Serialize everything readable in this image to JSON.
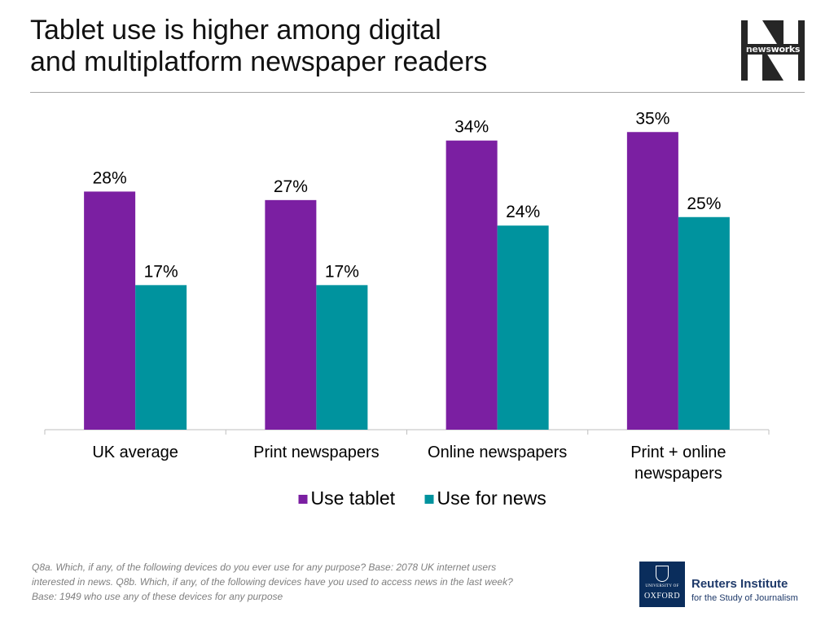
{
  "header": {
    "title_lines": [
      "Tablet use is higher among digital",
      "and multiplatform newspaper readers"
    ],
    "logo_prefix": "news",
    "logo_suffix": "works",
    "logo_letter": "N"
  },
  "chart_data": {
    "type": "bar",
    "categories": [
      [
        "UK average"
      ],
      [
        "Print newspapers"
      ],
      [
        "Online newspapers"
      ],
      [
        "Print + online",
        "newspapers"
      ]
    ],
    "series": [
      {
        "name": "Use tablet",
        "values": [
          28,
          27,
          34,
          35
        ],
        "labels": [
          "28%",
          "27%",
          "34%",
          "35%"
        ],
        "color": "#7b1fa2"
      },
      {
        "name": "Use for news",
        "values": [
          17,
          17,
          24,
          25
        ],
        "labels": [
          "17%",
          "17%",
          "24%",
          "25%"
        ],
        "color": "#00939e"
      }
    ],
    "ylim": [
      0,
      40
    ],
    "grid": false,
    "legend_position": "bottom"
  },
  "footer": {
    "footnote_lines": [
      "Q8a. Which, if any, of the following devices do you ever use for any purpose? Base: 2078 UK  internet users",
      "interested in news. Q8b. Which, if any, of the following devices have you used to access news in the last week?",
      "Base: 1949 who use any of these devices for any purpose"
    ],
    "oxford_university": "UNIVERSITY OF",
    "oxford_name": "OXFORD",
    "institute_name": "Reuters Institute",
    "institute_sub": "for the Study of Journalism"
  }
}
